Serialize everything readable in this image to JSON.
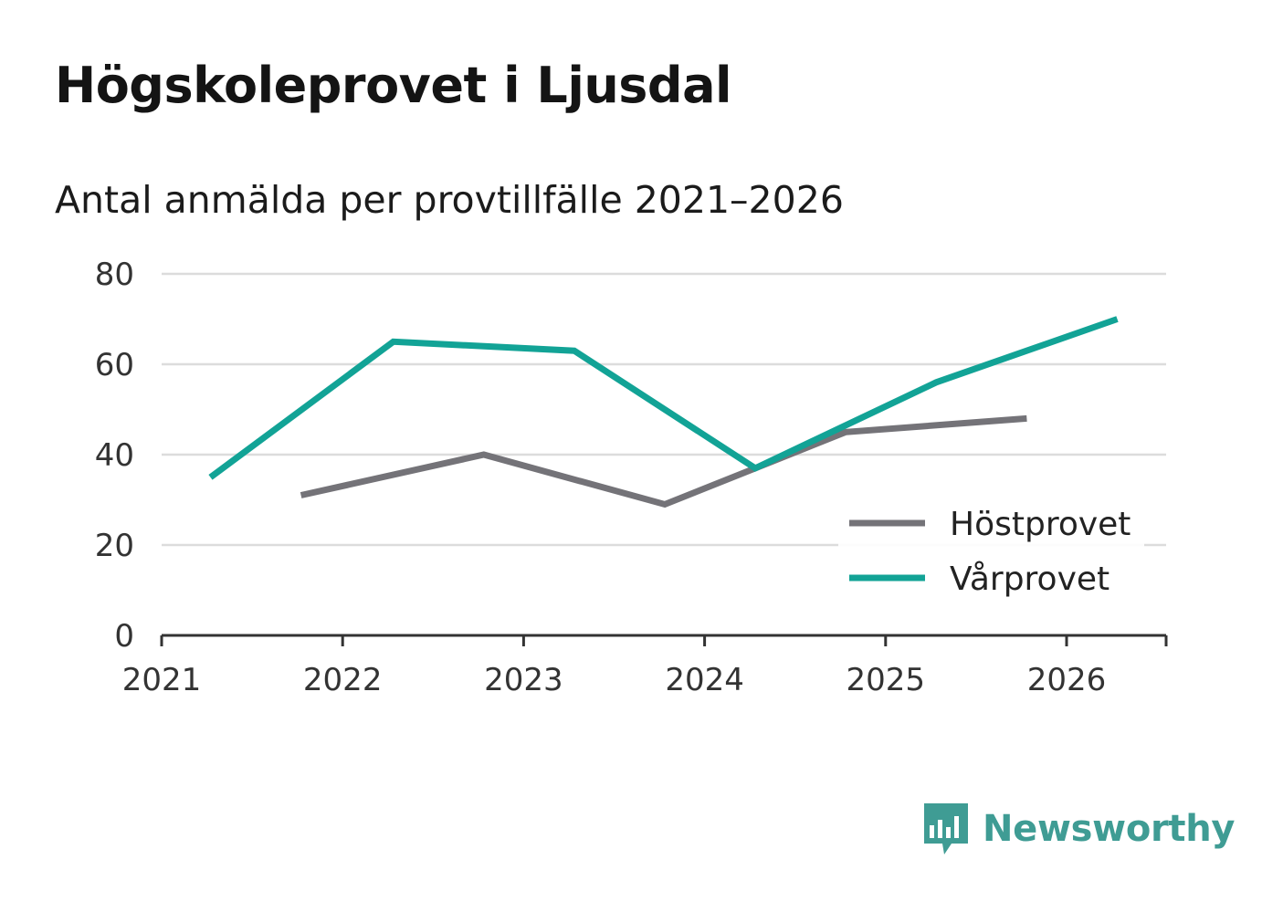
{
  "chart_data": {
    "type": "line",
    "title": "Högskoleprovet i Ljusdal",
    "subtitle": "Antal anmälda per provtillfälle 2021–2026",
    "xlabel": "",
    "ylabel": "",
    "xlim": [
      2021,
      2026.55
    ],
    "ylim": [
      0,
      80
    ],
    "x_ticks": [
      2021,
      2022,
      2023,
      2024,
      2025,
      2026
    ],
    "y_ticks": [
      0,
      20,
      40,
      60,
      80
    ],
    "grid": true,
    "legend_position": "bottom-right",
    "series": [
      {
        "name": "Höstprovet",
        "color": "#747378",
        "x": [
          2021.77,
          2022.78,
          2023.78,
          2024.78,
          2025.78
        ],
        "values": [
          31,
          40,
          29,
          45,
          48
        ]
      },
      {
        "name": "Vårprovet",
        "color": "#12a396",
        "x": [
          2021.27,
          2022.28,
          2023.28,
          2024.28,
          2025.28,
          2026.28
        ],
        "values": [
          35,
          65,
          63,
          37,
          56,
          70
        ]
      }
    ]
  },
  "brand": {
    "name": "Newsworthy",
    "icon": "newsworthy-logo-icon",
    "color": "#3f9c94"
  }
}
